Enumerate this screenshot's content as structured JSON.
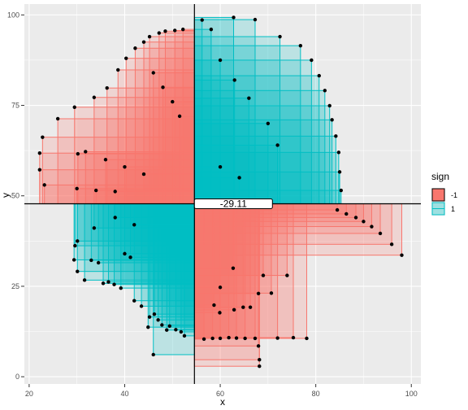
{
  "chart_data": {
    "type": "scatter",
    "xlabel": "x",
    "ylabel": "y",
    "xlim": [
      19,
      102
    ],
    "ylim": [
      -2,
      103
    ],
    "x_ticks": [
      20,
      40,
      60,
      80,
      100
    ],
    "y_ticks": [
      0,
      25,
      50,
      75,
      100
    ],
    "grid": true,
    "center": {
      "x": 54.6,
      "y": 47.8
    },
    "annotation": "-29.11",
    "legend": {
      "title": "sign",
      "placement": "right",
      "entries": [
        {
          "label": "-1",
          "color": "#F8766D"
        },
        {
          "label": "1",
          "color": "#00BFC4"
        }
      ]
    },
    "points": [
      {
        "x": 22.2,
        "y": 57.2
      },
      {
        "x": 22.2,
        "y": 61.8
      },
      {
        "x": 22.8,
        "y": 66.2
      },
      {
        "x": 23.2,
        "y": 53.0
      },
      {
        "x": 26.0,
        "y": 71.3
      },
      {
        "x": 29.5,
        "y": 74.5
      },
      {
        "x": 31.8,
        "y": 62.2
      },
      {
        "x": 30.2,
        "y": 61.6
      },
      {
        "x": 33.6,
        "y": 77.2
      },
      {
        "x": 36.3,
        "y": 79.8
      },
      {
        "x": 38.6,
        "y": 84.8
      },
      {
        "x": 40.3,
        "y": 88.0
      },
      {
        "x": 42.2,
        "y": 90.8
      },
      {
        "x": 44.0,
        "y": 92.5
      },
      {
        "x": 45.2,
        "y": 94.0
      },
      {
        "x": 47.2,
        "y": 95.0
      },
      {
        "x": 48.5,
        "y": 95.5
      },
      {
        "x": 50.5,
        "y": 95.7
      },
      {
        "x": 52.2,
        "y": 96.0
      },
      {
        "x": 46.0,
        "y": 84.0
      },
      {
        "x": 48.0,
        "y": 80.0
      },
      {
        "x": 50.0,
        "y": 76.0
      },
      {
        "x": 51.5,
        "y": 72.0
      },
      {
        "x": 36.0,
        "y": 60.0
      },
      {
        "x": 40.0,
        "y": 58.0
      },
      {
        "x": 44.0,
        "y": 56.0
      },
      {
        "x": 30.0,
        "y": 52.0
      },
      {
        "x": 34.0,
        "y": 51.5
      },
      {
        "x": 38.0,
        "y": 51.2
      },
      {
        "x": 56.2,
        "y": 98.6
      },
      {
        "x": 58.1,
        "y": 96.0
      },
      {
        "x": 62.8,
        "y": 99.3
      },
      {
        "x": 67.3,
        "y": 98.7
      },
      {
        "x": 72.5,
        "y": 94.0
      },
      {
        "x": 76.8,
        "y": 91.5
      },
      {
        "x": 79.1,
        "y": 87.5
      },
      {
        "x": 80.7,
        "y": 83.2
      },
      {
        "x": 81.9,
        "y": 79.1
      },
      {
        "x": 82.9,
        "y": 74.9
      },
      {
        "x": 83.4,
        "y": 71.0
      },
      {
        "x": 84.2,
        "y": 66.5
      },
      {
        "x": 84.8,
        "y": 62.0
      },
      {
        "x": 85.0,
        "y": 56.6
      },
      {
        "x": 85.3,
        "y": 51.5
      },
      {
        "x": 60.0,
        "y": 87.5
      },
      {
        "x": 63.0,
        "y": 82.0
      },
      {
        "x": 66.0,
        "y": 77.0
      },
      {
        "x": 70.0,
        "y": 70.0
      },
      {
        "x": 72.0,
        "y": 64.0
      },
      {
        "x": 60.0,
        "y": 58.0
      },
      {
        "x": 64.0,
        "y": 55.0
      },
      {
        "x": 29.6,
        "y": 36.2
      },
      {
        "x": 30.1,
        "y": 37.5
      },
      {
        "x": 29.4,
        "y": 32.3
      },
      {
        "x": 30.1,
        "y": 29.1
      },
      {
        "x": 31.6,
        "y": 26.7
      },
      {
        "x": 33.0,
        "y": 32.2
      },
      {
        "x": 34.5,
        "y": 31.5
      },
      {
        "x": 35.5,
        "y": 25.8
      },
      {
        "x": 36.6,
        "y": 26.2
      },
      {
        "x": 37.8,
        "y": 25.5
      },
      {
        "x": 39.2,
        "y": 24.5
      },
      {
        "x": 40.0,
        "y": 34.0
      },
      {
        "x": 41.2,
        "y": 33.0
      },
      {
        "x": 42.0,
        "y": 21.0
      },
      {
        "x": 43.5,
        "y": 19.5
      },
      {
        "x": 44.9,
        "y": 13.7
      },
      {
        "x": 45.2,
        "y": 16.5
      },
      {
        "x": 46.2,
        "y": 17.3
      },
      {
        "x": 47.0,
        "y": 15.7
      },
      {
        "x": 47.8,
        "y": 14.3
      },
      {
        "x": 48.8,
        "y": 12.9
      },
      {
        "x": 49.4,
        "y": 14.0
      },
      {
        "x": 50.7,
        "y": 13.0
      },
      {
        "x": 51.8,
        "y": 12.4
      },
      {
        "x": 52.5,
        "y": 11.3
      },
      {
        "x": 46.0,
        "y": 6.1
      },
      {
        "x": 33.6,
        "y": 41.1
      },
      {
        "x": 38.0,
        "y": 44.0
      },
      {
        "x": 42.0,
        "y": 42.0
      },
      {
        "x": 98.0,
        "y": 33.6
      },
      {
        "x": 95.9,
        "y": 36.6
      },
      {
        "x": 93.5,
        "y": 39.6
      },
      {
        "x": 91.7,
        "y": 41.5
      },
      {
        "x": 90.0,
        "y": 42.9
      },
      {
        "x": 88.4,
        "y": 44.0
      },
      {
        "x": 86.4,
        "y": 45.0
      },
      {
        "x": 84.5,
        "y": 46.1
      },
      {
        "x": 78.1,
        "y": 10.6
      },
      {
        "x": 75.3,
        "y": 10.8
      },
      {
        "x": 72.0,
        "y": 10.7
      },
      {
        "x": 70.7,
        "y": 23.1
      },
      {
        "x": 69.0,
        "y": 28.0
      },
      {
        "x": 68.2,
        "y": 2.9
      },
      {
        "x": 68.2,
        "y": 4.7
      },
      {
        "x": 68.0,
        "y": 8.5
      },
      {
        "x": 67.3,
        "y": 10.6
      },
      {
        "x": 65.2,
        "y": 10.6
      },
      {
        "x": 63.4,
        "y": 10.7
      },
      {
        "x": 61.8,
        "y": 10.8
      },
      {
        "x": 60.0,
        "y": 10.6
      },
      {
        "x": 58.4,
        "y": 10.6
      },
      {
        "x": 56.6,
        "y": 10.4
      },
      {
        "x": 59.9,
        "y": 17.7
      },
      {
        "x": 62.9,
        "y": 18.5
      },
      {
        "x": 64.8,
        "y": 19.2
      },
      {
        "x": 66.3,
        "y": 19.2
      },
      {
        "x": 58.7,
        "y": 19.8
      },
      {
        "x": 60.0,
        "y": 24.7
      },
      {
        "x": 62.7,
        "y": 30.0
      },
      {
        "x": 74.0,
        "y": 28.0
      },
      {
        "x": 68.0,
        "y": 23.0
      }
    ]
  }
}
